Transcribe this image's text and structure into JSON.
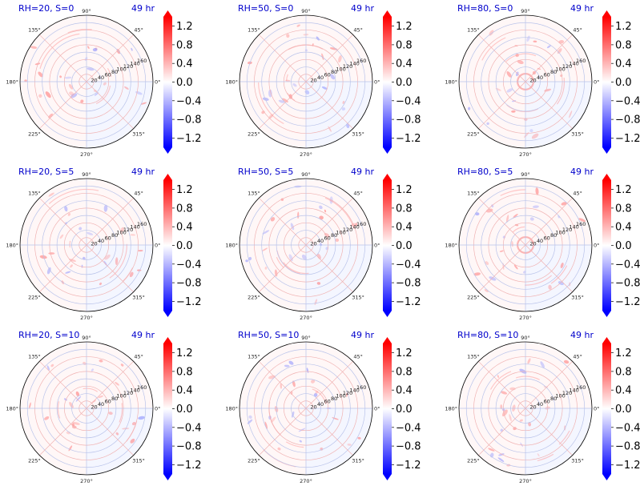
{
  "colormap": {
    "name": "bwr",
    "low": "#0000ff",
    "mid": "#ffffff",
    "high": "#ff0000"
  },
  "chart_data": [
    {
      "type": "polar-heatmap",
      "title_left": "RH=20, S=0",
      "title_right": "49 hr"
    },
    {
      "type": "polar-heatmap",
      "title_left": "RH=50, S=0",
      "title_right": "49 hr"
    },
    {
      "type": "polar-heatmap",
      "title_left": "RH=80, S=0",
      "title_right": "49 hr"
    },
    {
      "type": "polar-heatmap",
      "title_left": "RH=20, S=5",
      "title_right": "49 hr"
    },
    {
      "type": "polar-heatmap",
      "title_left": "RH=50, S=5",
      "title_right": "49 hr"
    },
    {
      "type": "polar-heatmap",
      "title_left": "RH=80, S=5",
      "title_right": "49 hr"
    },
    {
      "type": "polar-heatmap",
      "title_left": "RH=20, S=10",
      "title_right": "49 hr"
    },
    {
      "type": "polar-heatmap",
      "title_left": "RH=50, S=10",
      "title_right": "49 hr"
    },
    {
      "type": "polar-heatmap",
      "title_left": "RH=80, S=10",
      "title_right": "49 hr"
    }
  ],
  "shared_axes": {
    "angle_ticks": [
      0,
      45,
      90,
      135,
      180,
      225,
      270,
      315
    ],
    "angle_labels": [
      "0°",
      "45°",
      "90°",
      "135°",
      "180°",
      "225°",
      "270°",
      "315°"
    ],
    "radial_ticks": [
      20,
      40,
      60,
      80,
      100,
      120,
      140,
      160
    ],
    "radial_labels": [
      "20",
      "40",
      "60",
      "80",
      "100",
      "120",
      "140",
      "160"
    ],
    "rlim": [
      0,
      180
    ],
    "colorbar": {
      "ticks": [
        1.2,
        0.8,
        0.4,
        0.0,
        -0.4,
        -0.8,
        -1.2
      ],
      "tick_labels": [
        "1.2",
        "0.8",
        "0.4",
        "0.0",
        "−0.4",
        "−0.8",
        "−1.2"
      ],
      "range": [
        -1.4,
        1.4
      ],
      "extend": "both"
    }
  }
}
